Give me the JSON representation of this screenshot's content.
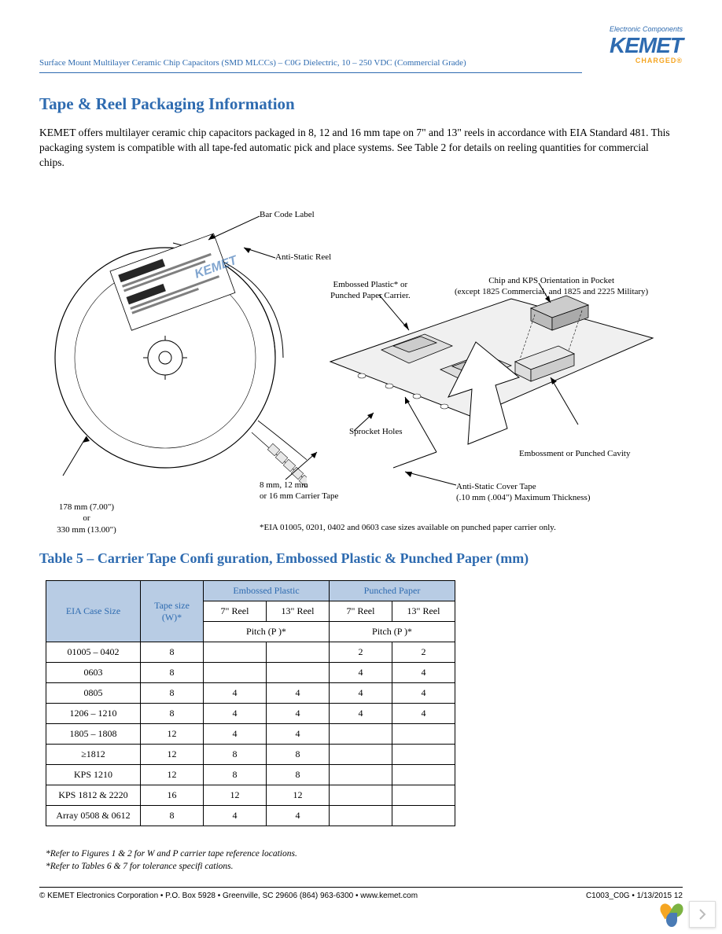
{
  "header": {
    "doc_line": "Surface Mount Multilayer Ceramic Chip Capacitors (SMD MLCCs) – C0G Dielectric, 10 – 250 VDC (Commercial Grade)",
    "logo": {
      "tagline": "Electronic Components",
      "brand": "KEMET",
      "charged": "CHARGED®"
    }
  },
  "section1": {
    "title": "Tape & Reel Packaging Information",
    "body": "KEMET offers multilayer ceramic chip capacitors packaged in 8, 12 and 16 mm tape on 7\" and 13\" reels in accordance with EIA Standard 481. This packaging system is compatible with all tape-fed automatic pick and place systems. See Table 2 for details on reeling quantities for commercial chips."
  },
  "diagram": {
    "callouts": {
      "bar_code": "Bar Code Label",
      "anti_static_reel": "Anti-Static Reel",
      "embossed_carrier": "Embossed Plastic* or\nPunched Paper Carrier.",
      "chip_orientation": "Chip and KPS Orientation in Pocket\n(except 1825 Commercial, and 1825 and 2225 Military)",
      "sprocket": "Sprocket Holes",
      "embossment": "Embossment or Punched Cavity",
      "cover_tape": "Anti-Static Cover Tape\n(.10 mm (.004\") Maximum Thickness)",
      "carrier_tape": "8 mm, 12 mm\nor 16 mm Carrier Tape",
      "reel_size": "178 mm (7.00\")\nor\n330 mm (13.00\")",
      "footnote": "*EIA 01005, 0201, 0402 and 0603 case sizes available on punched paper carrier only."
    },
    "reel_label_brand": "KEMET"
  },
  "table5": {
    "title": "Table 5 – Carrier Tape Confi guration, Embossed Plastic & Punched Paper (mm)",
    "headers": {
      "case": "EIA Case Size",
      "tape": "Tape size (W)*",
      "embossed": "Embossed Plastic",
      "punched": "Punched Paper",
      "reel7": "7\" Reel",
      "reel13": "13\" Reel",
      "pitch": "Pitch (P )*"
    },
    "rows": [
      {
        "case": "01005 – 0402",
        "tape": "8",
        "e7": "",
        "e13": "",
        "p7": "2",
        "p13": "2"
      },
      {
        "case": "0603",
        "tape": "8",
        "e7": "",
        "e13": "",
        "p7": "4",
        "p13": "4"
      },
      {
        "case": "0805",
        "tape": "8",
        "e7": "4",
        "e13": "4",
        "p7": "4",
        "p13": "4"
      },
      {
        "case": "1206 – 1210",
        "tape": "8",
        "e7": "4",
        "e13": "4",
        "p7": "4",
        "p13": "4"
      },
      {
        "case": "1805 – 1808",
        "tape": "12",
        "e7": "4",
        "e13": "4",
        "p7": "",
        "p13": ""
      },
      {
        "case": "≥1812",
        "tape": "12",
        "e7": "8",
        "e13": "8",
        "p7": "",
        "p13": ""
      },
      {
        "case": "KPS 1210",
        "tape": "12",
        "e7": "8",
        "e13": "8",
        "p7": "",
        "p13": ""
      },
      {
        "case": "KPS 1812 & 2220",
        "tape": "16",
        "e7": "12",
        "e13": "12",
        "p7": "",
        "p13": ""
      },
      {
        "case": "Array 0508 & 0612",
        "tape": "8",
        "e7": "4",
        "e13": "4",
        "p7": "",
        "p13": ""
      }
    ],
    "footnotes": [
      "*Refer to Figures 1 & 2 for W and P     carrier tape reference locations.",
      "*Refer to Tables 6 & 7 for tolerance specifi cations."
    ]
  },
  "footer": {
    "left": "© KEMET Electronics Corporation • P.O. Box 5928 • Greenville, SC 29606 (864) 963-6300 • www.kemet.com",
    "right": "C1003_C0G • 1/13/2015 12"
  },
  "colors": {
    "accent_blue": "#2e6bb0",
    "header_bg": "#b8cce4",
    "orange": "#f5a623"
  }
}
